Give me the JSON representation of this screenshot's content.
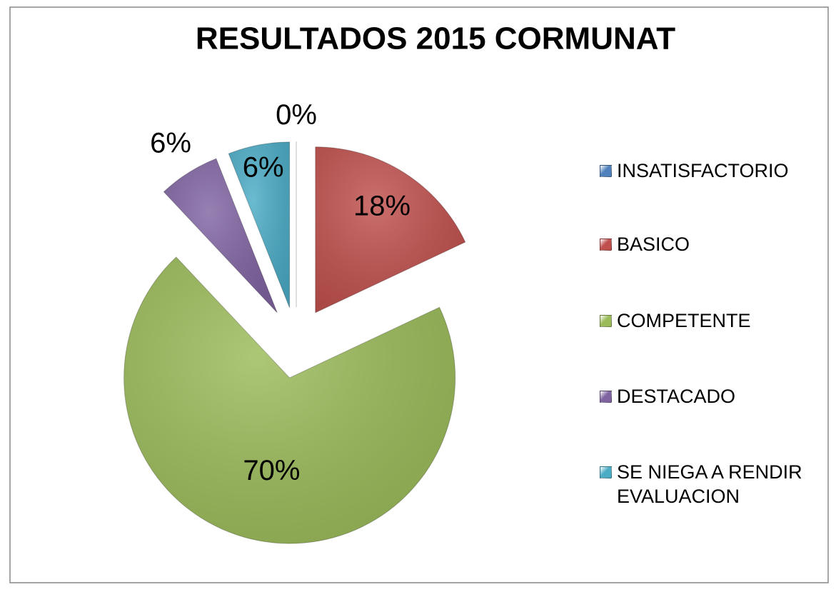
{
  "chart_data": {
    "type": "pie",
    "title": "RESULTADOS 2015 CORMUNAT",
    "categories": [
      "INSATISFACTORIO",
      "BASICO",
      "COMPETENTE",
      "DESTACADO",
      "SE NIEGA A RENDIR EVALUACION"
    ],
    "values": [
      0,
      18,
      70,
      6,
      6
    ],
    "value_labels": [
      "0%",
      "18%",
      "70%",
      "6%",
      "6%"
    ],
    "colors": [
      "#4f81bd",
      "#c0504d",
      "#9bbb59",
      "#8064a2",
      "#4bacc6"
    ],
    "legend": "right"
  }
}
